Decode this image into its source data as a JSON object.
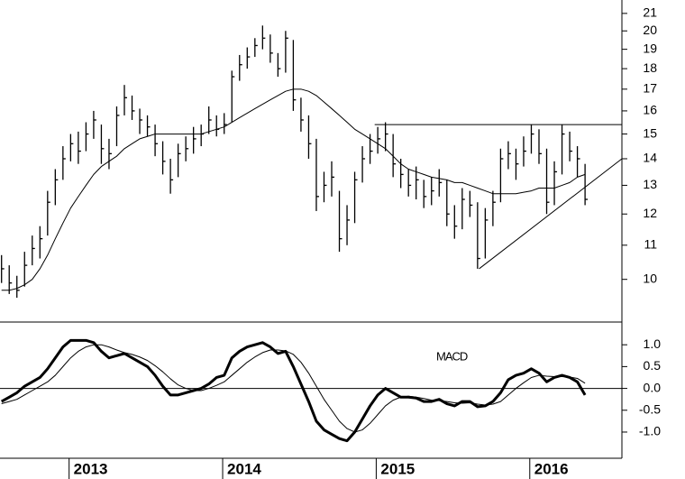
{
  "chart_data": {
    "type": "ohlc",
    "log_scale": true,
    "x": [
      2012.56,
      2012.61,
      2012.66,
      2012.71,
      2012.76,
      2012.81,
      2012.86,
      2012.91,
      2012.96,
      2013.01,
      2013.06,
      2013.11,
      2013.16,
      2013.21,
      2013.26,
      2013.31,
      2013.36,
      2013.41,
      2013.46,
      2013.51,
      2013.56,
      2013.61,
      2013.66,
      2013.71,
      2013.76,
      2013.81,
      2013.86,
      2013.91,
      2013.96,
      2014.01,
      2014.06,
      2014.11,
      2014.16,
      2014.21,
      2014.26,
      2014.31,
      2014.36,
      2014.41,
      2014.46,
      2014.51,
      2014.56,
      2014.61,
      2014.66,
      2014.71,
      2014.76,
      2014.81,
      2014.86,
      2014.91,
      2014.96,
      2015.01,
      2015.06,
      2015.11,
      2015.16,
      2015.21,
      2015.26,
      2015.31,
      2015.36,
      2015.41,
      2015.46,
      2015.51,
      2015.56,
      2015.61,
      2015.66,
      2015.71,
      2015.76,
      2015.81,
      2015.86,
      2015.91,
      2015.96,
      2016.01,
      2016.06,
      2016.11,
      2016.16,
      2016.21,
      2016.26,
      2016.31,
      2016.36
    ],
    "xlim": [
      2012.55,
      2016.6
    ],
    "xticks": [
      2013,
      2014,
      2015,
      2016
    ],
    "high": [
      10.7,
      10.4,
      10.1,
      10.8,
      11.3,
      11.6,
      12.8,
      13.6,
      14.5,
      15.0,
      15.1,
      15.5,
      16.0,
      15.4,
      14.8,
      16.2,
      17.2,
      16.7,
      16.1,
      15.8,
      15.4,
      14.7,
      14.0,
      14.6,
      14.9,
      15.3,
      15.4,
      16.2,
      15.8,
      15.9,
      17.9,
      18.7,
      19.1,
      19.6,
      20.3,
      19.8,
      18.8,
      20.0,
      19.5,
      16.6,
      15.8,
      14.8,
      13.5,
      13.9,
      12.8,
      12.3,
      13.5,
      14.5,
      15.0,
      15.3,
      15.5,
      15.0,
      14.0,
      13.6,
      13.7,
      13.2,
      13.3,
      13.6,
      13.2,
      12.3,
      12.9,
      12.8,
      12.4,
      12.2,
      12.8,
      14.4,
      14.7,
      14.4,
      14.9,
      15.4,
      15.2,
      14.4,
      13.9,
      15.4,
      15.1,
      14.5,
      13.8
    ],
    "low": [
      9.9,
      9.6,
      9.5,
      9.8,
      10.4,
      10.6,
      11.3,
      12.3,
      13.2,
      13.9,
      13.8,
      14.3,
      14.8,
      13.8,
      13.6,
      14.5,
      15.8,
      15.6,
      15.0,
      14.9,
      14.1,
      13.4,
      12.7,
      13.3,
      13.9,
      14.2,
      14.5,
      15.0,
      14.9,
      15.0,
      15.5,
      17.4,
      18.0,
      18.6,
      19.0,
      18.3,
      17.6,
      17.8,
      16.0,
      15.1,
      14.0,
      12.1,
      12.4,
      12.6,
      10.8,
      11.0,
      11.7,
      13.1,
      13.8,
      14.2,
      14.3,
      13.3,
      12.9,
      12.6,
      12.5,
      12.2,
      12.3,
      12.6,
      11.6,
      11.2,
      11.5,
      11.9,
      10.3,
      10.6,
      11.6,
      12.4,
      13.6,
      13.2,
      13.7,
      14.2,
      13.8,
      12.0,
      12.3,
      13.4,
      13.9,
      13.3,
      12.3
    ],
    "close": [
      10.3,
      9.9,
      9.7,
      10.4,
      10.9,
      11.2,
      12.4,
      13.2,
      14.0,
      14.6,
      14.3,
      15.0,
      15.6,
      14.4,
      14.2,
      15.8,
      16.6,
      16.0,
      15.6,
      15.3,
      14.6,
      13.9,
      13.2,
      14.2,
      14.4,
      14.8,
      15.0,
      15.6,
      15.2,
      15.4,
      17.6,
      18.2,
      18.6,
      19.2,
      19.6,
      18.8,
      18.0,
      19.6,
      16.5,
      15.6,
      14.6,
      12.6,
      13.0,
      13.3,
      11.2,
      11.8,
      13.2,
      14.0,
      14.3,
      14.8,
      15.0,
      13.8,
      13.4,
      13.0,
      13.2,
      12.6,
      12.8,
      13.1,
      12.0,
      11.6,
      12.5,
      12.3,
      10.6,
      11.8,
      12.4,
      14.0,
      14.2,
      13.8,
      14.3,
      15.0,
      14.2,
      12.4,
      13.5,
      15.0,
      14.3,
      14.0,
      12.5
    ],
    "color": "#000000",
    "series": [
      {
        "color": "#000000",
        "values": [
          9.7,
          9.7,
          9.75,
          9.85,
          10.0,
          10.3,
          10.7,
          11.2,
          11.7,
          12.2,
          12.6,
          13.0,
          13.4,
          13.7,
          13.9,
          14.1,
          14.4,
          14.6,
          14.8,
          14.9,
          15.0,
          15.0,
          15.0,
          15.0,
          15.0,
          15.0,
          15.0,
          15.1,
          15.2,
          15.3,
          15.5,
          15.7,
          15.9,
          16.1,
          16.3,
          16.5,
          16.7,
          16.9,
          17.0,
          17.0,
          16.9,
          16.7,
          16.4,
          16.1,
          15.8,
          15.5,
          15.2,
          15.0,
          14.8,
          14.6,
          14.4,
          14.1,
          13.8,
          13.6,
          13.5,
          13.4,
          13.3,
          13.25,
          13.2,
          13.1,
          13.1,
          13.0,
          12.9,
          12.8,
          12.7,
          12.7,
          12.7,
          12.7,
          12.75,
          12.8,
          12.9,
          12.9,
          12.9,
          13.0,
          13.1,
          13.3,
          13.4
        ]
      }
    ],
    "trendlines": [
      {
        "x": [
          2014.99,
          2016.6
        ],
        "y": [
          15.4,
          15.4
        ]
      },
      {
        "x": [
          2015.67,
          2016.6
        ],
        "y": [
          10.3,
          14.0
        ]
      }
    ],
    "ylim": [
      8.9,
      21.8
    ],
    "yticks": [
      10,
      11,
      12,
      13,
      14,
      15,
      16,
      17,
      18,
      19,
      20,
      21
    ],
    "indicator": {
      "type": "line",
      "annotation": "MACD",
      "ylim": [
        -1.6,
        1.5
      ],
      "yticks": [
        {
          "value": 1,
          "label": "1.0"
        },
        {
          "value": 0.5,
          "label": "0.5"
        },
        {
          "value": 0,
          "label": "0.0"
        },
        {
          "value": -0.5,
          "label": "-0.5"
        },
        {
          "value": -1,
          "label": "-1.0"
        }
      ],
      "series": [
        {
          "color": "#000000",
          "width": 3,
          "values": [
            -0.3,
            -0.2,
            -0.1,
            0.05,
            0.15,
            0.25,
            0.45,
            0.7,
            0.95,
            1.1,
            1.1,
            1.1,
            1.05,
            0.85,
            0.7,
            0.75,
            0.8,
            0.7,
            0.6,
            0.5,
            0.3,
            0.05,
            -0.15,
            -0.15,
            -0.1,
            -0.05,
            0.0,
            0.1,
            0.25,
            0.3,
            0.7,
            0.85,
            0.95,
            1.0,
            1.05,
            0.95,
            0.8,
            0.85,
            0.5,
            0.1,
            -0.3,
            -0.75,
            -0.95,
            -1.05,
            -1.15,
            -1.2,
            -1.0,
            -0.7,
            -0.4,
            -0.15,
            0.0,
            -0.1,
            -0.2,
            -0.2,
            -0.22,
            -0.3,
            -0.3,
            -0.25,
            -0.35,
            -0.4,
            -0.3,
            -0.3,
            -0.42,
            -0.4,
            -0.3,
            -0.1,
            0.2,
            0.3,
            0.35,
            0.45,
            0.35,
            0.15,
            0.25,
            0.3,
            0.25,
            0.15,
            -0.15
          ]
        },
        {
          "color": "#000000",
          "width": 1,
          "values": [
            -0.35,
            -0.3,
            -0.25,
            -0.15,
            -0.05,
            0.05,
            0.15,
            0.3,
            0.5,
            0.7,
            0.85,
            0.95,
            1.0,
            1.0,
            0.95,
            0.88,
            0.82,
            0.78,
            0.72,
            0.64,
            0.52,
            0.38,
            0.22,
            0.08,
            0.0,
            -0.05,
            -0.05,
            0.0,
            0.07,
            0.15,
            0.3,
            0.45,
            0.6,
            0.72,
            0.82,
            0.88,
            0.88,
            0.86,
            0.78,
            0.6,
            0.35,
            0.05,
            -0.25,
            -0.5,
            -0.75,
            -0.92,
            -1.0,
            -0.95,
            -0.8,
            -0.6,
            -0.4,
            -0.27,
            -0.2,
            -0.18,
            -0.2,
            -0.23,
            -0.27,
            -0.28,
            -0.3,
            -0.33,
            -0.34,
            -0.33,
            -0.36,
            -0.38,
            -0.36,
            -0.3,
            -0.15,
            0.0,
            0.13,
            0.25,
            0.3,
            0.28,
            0.27,
            0.27,
            0.26,
            0.23,
            0.12
          ]
        }
      ]
    }
  }
}
